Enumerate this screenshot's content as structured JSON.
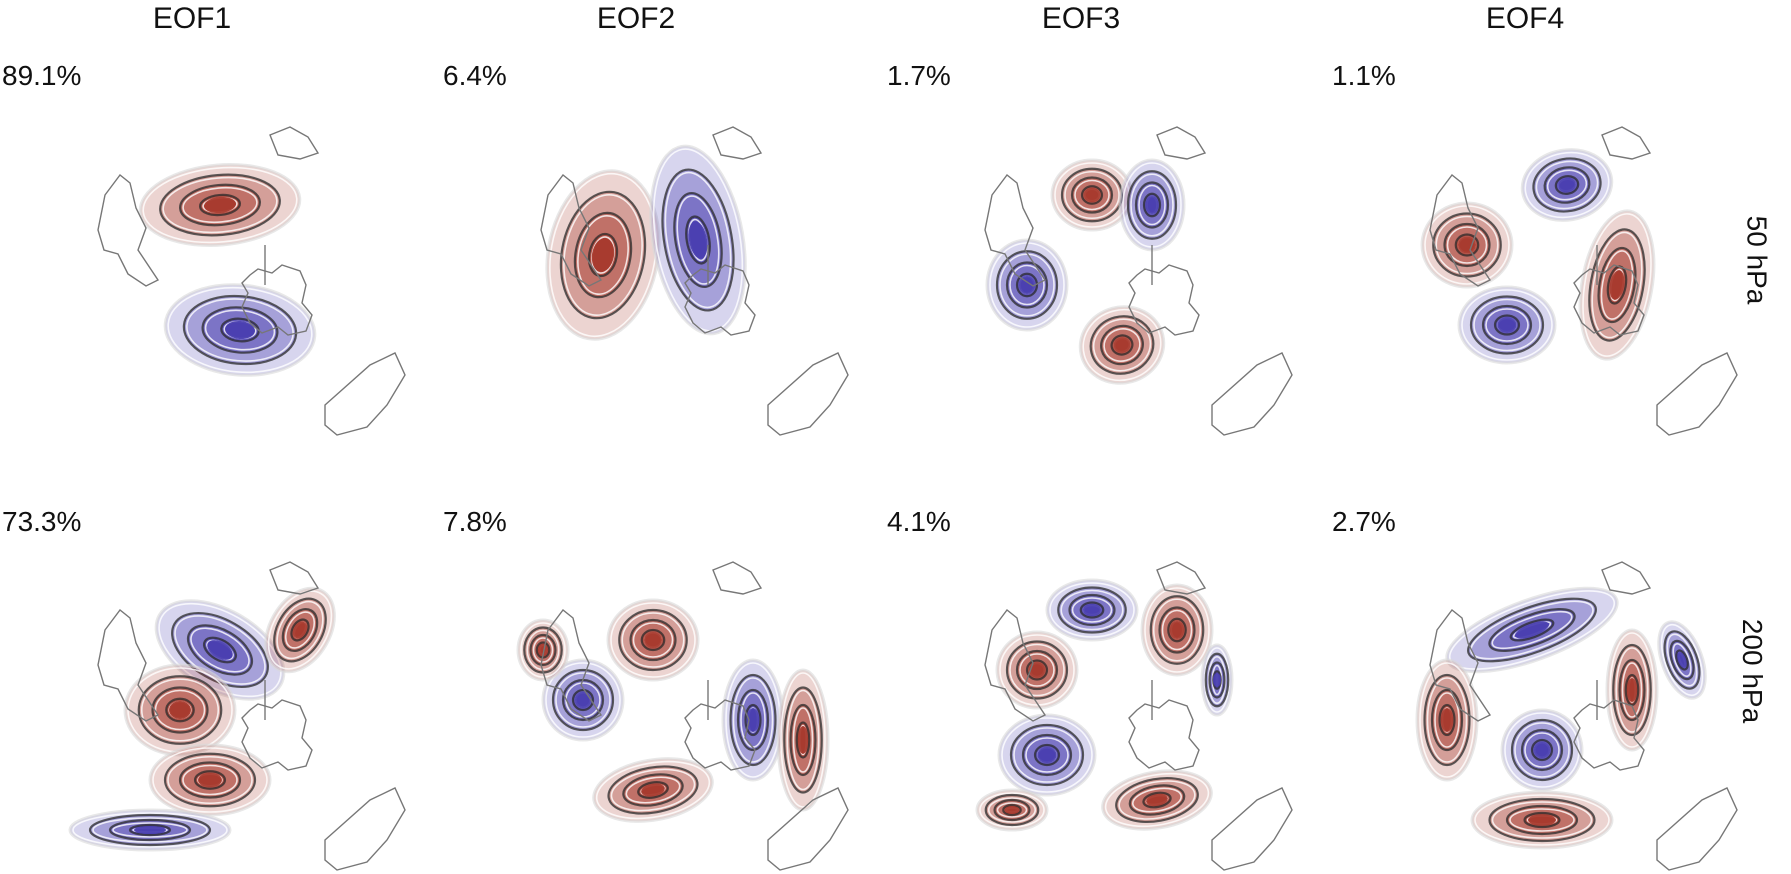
{
  "columns": [
    "EOF1",
    "EOF2",
    "EOF3",
    "EOF4"
  ],
  "rows": [
    {
      "label": "50 hPa",
      "variance": [
        "89.1%",
        "6.4%",
        "1.7%",
        "1.1%"
      ]
    },
    {
      "label": "200 hPa",
      "variance": [
        "73.3%",
        "7.8%",
        "4.1%",
        "2.7%"
      ]
    }
  ],
  "colors": {
    "positive": "#a83a2e",
    "negative": "#4a3fb0",
    "contour": "#2b2b2b",
    "coast": "#777777"
  }
}
